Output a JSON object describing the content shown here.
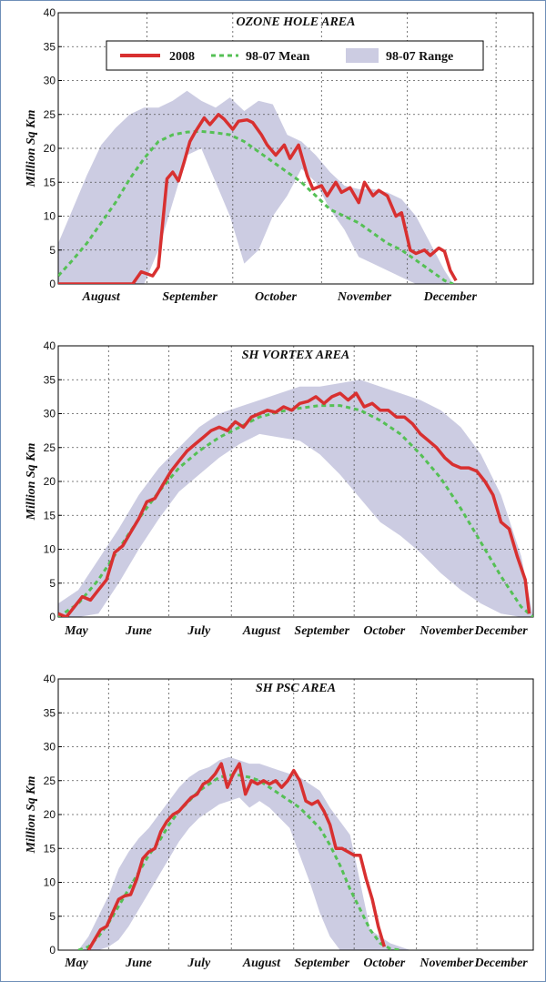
{
  "colors": {
    "series2008": "#d83030",
    "mean": "#55c055",
    "range": "#cccce2",
    "grid": "#555555"
  },
  "legend": {
    "items": [
      {
        "label": "2008",
        "style": "solid"
      },
      {
        "label": "98-07 Mean",
        "style": "dashed"
      },
      {
        "label": "98-07 Range",
        "style": "band"
      }
    ]
  },
  "chart_data": [
    {
      "type": "line",
      "title": "OZONE HOLE AREA",
      "xlabel": "",
      "ylabel": "Million Sq Km",
      "ylim": [
        0,
        40
      ],
      "yticks": [
        0,
        5,
        10,
        15,
        20,
        25,
        30,
        35,
        40
      ],
      "xlim": [
        0,
        166
      ],
      "months": [
        {
          "label": "August",
          "pos": 15
        },
        {
          "label": "September",
          "pos": 46
        },
        {
          "label": "October",
          "pos": 76
        },
        {
          "label": "November",
          "pos": 107
        },
        {
          "label": "December",
          "pos": 137
        }
      ],
      "grid_x": [
        31,
        61,
        92,
        122,
        153
      ],
      "legend": true,
      "series": [
        {
          "name": "2008",
          "x": [
            0,
            10,
            20,
            26,
            29,
            33,
            35,
            38,
            40,
            42,
            44,
            46,
            48,
            51,
            53,
            56,
            58,
            61,
            63,
            66,
            68,
            71,
            73,
            76,
            79,
            81,
            84,
            87,
            89,
            92,
            94,
            97,
            99,
            102,
            105,
            107,
            110,
            112,
            115,
            118,
            120,
            123,
            125,
            128,
            130,
            133,
            135,
            137,
            139
          ],
          "y": [
            0,
            0,
            0,
            0,
            1.8,
            1.2,
            2.5,
            15.5,
            16.5,
            15.2,
            18,
            21,
            22.5,
            24.5,
            23.5,
            25,
            24.3,
            22.8,
            24,
            24.2,
            23.8,
            22,
            20.5,
            19,
            20.5,
            18.5,
            20.5,
            16,
            14,
            14.5,
            13,
            15,
            13.5,
            14.2,
            12,
            15,
            13,
            13.8,
            13,
            10,
            10.5,
            5,
            4.5,
            5,
            4.2,
            5.3,
            4.8,
            2,
            0.5
          ]
        },
        {
          "name": "98-07 Mean",
          "x": [
            0,
            5,
            10,
            15,
            20,
            25,
            30,
            35,
            40,
            45,
            50,
            55,
            60,
            65,
            70,
            75,
            80,
            85,
            90,
            95,
            100,
            105,
            110,
            115,
            120,
            125,
            130,
            135,
            138
          ],
          "y": [
            1.2,
            3.5,
            6,
            9,
            12,
            15.5,
            18.5,
            21,
            22,
            22.4,
            22.5,
            22.3,
            22,
            21,
            19.5,
            18,
            16.5,
            15,
            13,
            11,
            10,
            9,
            7.5,
            6,
            5,
            3.5,
            2,
            0.5,
            0
          ]
        },
        {
          "name": "98-07 Range",
          "type": "area",
          "x": [
            0,
            5,
            10,
            15,
            20,
            25,
            30,
            35,
            40,
            45,
            50,
            55,
            60,
            65,
            70,
            75,
            80,
            85,
            90,
            95,
            100,
            105,
            110,
            115,
            120,
            125,
            130,
            135,
            138
          ],
          "upper": [
            6,
            11,
            16,
            20.5,
            23,
            25,
            26,
            26,
            27,
            28.5,
            27,
            26,
            27.5,
            25.5,
            27,
            26.5,
            22,
            21,
            19,
            16.5,
            14.5,
            14,
            14,
            13.5,
            12.5,
            10,
            6,
            2,
            0
          ],
          "lower": [
            0,
            0,
            0,
            0,
            0,
            0,
            0,
            5,
            12,
            19,
            20,
            15,
            10,
            3,
            5,
            10,
            13,
            17,
            15,
            11,
            8,
            4,
            3,
            2,
            1,
            0,
            0,
            0,
            0
          ]
        }
      ]
    },
    {
      "type": "line",
      "title": "SH VORTEX AREA",
      "xlabel": "",
      "ylabel": "Million Sq Km",
      "ylim": [
        0,
        40
      ],
      "yticks": [
        0,
        5,
        10,
        15,
        20,
        25,
        30,
        35,
        40
      ],
      "xlim": [
        0,
        236
      ],
      "months": [
        {
          "label": "May",
          "pos": 9
        },
        {
          "label": "June",
          "pos": 40
        },
        {
          "label": "July",
          "pos": 70
        },
        {
          "label": "August",
          "pos": 101
        },
        {
          "label": "September",
          "pos": 131
        },
        {
          "label": "October",
          "pos": 162
        },
        {
          "label": "November",
          "pos": 193
        },
        {
          "label": "December",
          "pos": 220
        }
      ],
      "grid_x": [
        25,
        55,
        86,
        117,
        147,
        178,
        208
      ],
      "legend": false,
      "series": [
        {
          "name": "2008",
          "x": [
            0,
            4,
            8,
            12,
            16,
            20,
            24,
            28,
            32,
            36,
            40,
            44,
            48,
            52,
            56,
            60,
            64,
            68,
            72,
            76,
            80,
            84,
            88,
            92,
            96,
            100,
            104,
            108,
            112,
            116,
            120,
            124,
            128,
            132,
            136,
            140,
            144,
            148,
            152,
            156,
            160,
            164,
            168,
            172,
            176,
            180,
            184,
            188,
            192,
            196,
            200,
            204,
            208,
            212,
            216,
            220,
            224,
            228,
            232,
            234
          ],
          "y": [
            0.5,
            0,
            1.5,
            3,
            2.5,
            4,
            5.5,
            9.5,
            10.5,
            12.5,
            14.5,
            17,
            17.5,
            19.5,
            21.5,
            23,
            24.5,
            25.5,
            26.5,
            27.5,
            28,
            27.5,
            28.8,
            28,
            29.5,
            30,
            30.5,
            30.2,
            31,
            30.5,
            31.5,
            31.8,
            32.5,
            31.5,
            32.5,
            33,
            32,
            33,
            31,
            31.5,
            30.5,
            30.5,
            29.5,
            29.5,
            28.5,
            27,
            26,
            25,
            23.5,
            22.5,
            22,
            22,
            21.5,
            20,
            18,
            14,
            13,
            9,
            5.5,
            0.5
          ]
        },
        {
          "name": "98-07 Mean",
          "x": [
            0,
            10,
            20,
            30,
            40,
            50,
            60,
            70,
            80,
            90,
            100,
            110,
            120,
            130,
            140,
            150,
            160,
            170,
            180,
            190,
            200,
            210,
            220,
            230,
            236
          ],
          "y": [
            0,
            2,
            5.5,
            10,
            14.5,
            18.5,
            22,
            24.5,
            26.5,
            28,
            29.5,
            30.3,
            30.8,
            31.2,
            31.2,
            30.5,
            29,
            27,
            24,
            20.5,
            16,
            11,
            6,
            1.5,
            0
          ]
        },
        {
          "name": "98-07 Range",
          "type": "area",
          "x": [
            0,
            10,
            20,
            30,
            40,
            50,
            60,
            70,
            80,
            90,
            100,
            110,
            120,
            130,
            140,
            150,
            160,
            170,
            180,
            190,
            200,
            210,
            220,
            230,
            236
          ],
          "upper": [
            2,
            4,
            8.5,
            13,
            18,
            22,
            25,
            28,
            30,
            31,
            32,
            33,
            34,
            34,
            34.5,
            35,
            34,
            33,
            32,
            30.5,
            28,
            24,
            18,
            9,
            0
          ],
          "lower": [
            0,
            0,
            0.5,
            5,
            10,
            14.5,
            18.5,
            21,
            23.5,
            25.5,
            27,
            26.5,
            26,
            24,
            21,
            17.5,
            14,
            12,
            9.5,
            6.5,
            4,
            2,
            0.5,
            0,
            0
          ]
        }
      ]
    },
    {
      "type": "line",
      "title": "SH PSC AREA",
      "xlabel": "",
      "ylabel": "Million Sq Km",
      "ylim": [
        0,
        40
      ],
      "yticks": [
        0,
        5,
        10,
        15,
        20,
        25,
        30,
        35,
        40
      ],
      "xlim": [
        0,
        236
      ],
      "months": [
        {
          "label": "May",
          "pos": 9
        },
        {
          "label": "June",
          "pos": 40
        },
        {
          "label": "July",
          "pos": 70
        },
        {
          "label": "August",
          "pos": 101
        },
        {
          "label": "September",
          "pos": 131
        },
        {
          "label": "October",
          "pos": 162
        },
        {
          "label": "November",
          "pos": 193
        },
        {
          "label": "December",
          "pos": 220
        }
      ],
      "grid_x": [
        25,
        55,
        86,
        117,
        147,
        178,
        208
      ],
      "legend": false,
      "series": [
        {
          "name": "2008",
          "x": [
            15,
            18,
            21,
            24,
            27,
            30,
            33,
            36,
            39,
            42,
            45,
            48,
            51,
            54,
            57,
            60,
            63,
            66,
            69,
            72,
            75,
            78,
            81,
            84,
            87,
            90,
            93,
            96,
            99,
            102,
            105,
            108,
            111,
            114,
            117,
            120,
            123,
            126,
            129,
            132,
            135,
            138,
            141,
            144,
            147,
            150,
            153,
            156,
            159,
            162
          ],
          "y": [
            0,
            1.5,
            3,
            3.5,
            5.5,
            7.5,
            8,
            8.2,
            10.5,
            13.5,
            14.5,
            15,
            17.5,
            19,
            20,
            20.5,
            21.5,
            22.5,
            23,
            24.5,
            25,
            26,
            27.5,
            24,
            26,
            27.5,
            23,
            25,
            24.5,
            25,
            24.5,
            25,
            24,
            25,
            26.5,
            25,
            22,
            21.5,
            22,
            20.5,
            18.5,
            15,
            15,
            14.5,
            14,
            14,
            10.5,
            7.5,
            3.5,
            0.5
          ]
        },
        {
          "name": "98-07 Mean",
          "x": [
            10,
            15,
            20,
            25,
            30,
            35,
            40,
            45,
            50,
            55,
            60,
            65,
            70,
            75,
            80,
            85,
            90,
            95,
            100,
            105,
            110,
            115,
            120,
            125,
            130,
            135,
            140,
            145,
            150,
            155,
            160,
            165,
            170
          ],
          "y": [
            0,
            0.5,
            2,
            4,
            6.5,
            9,
            11.5,
            14,
            16,
            18.5,
            20.5,
            22,
            23.5,
            24.5,
            25.5,
            25.8,
            25.8,
            25.5,
            25,
            24,
            23,
            22,
            21,
            19.5,
            18,
            15.5,
            12.5,
            9,
            6,
            3,
            1,
            0.2,
            0
          ]
        },
        {
          "name": "98-07 Range",
          "type": "area",
          "x": [
            10,
            15,
            20,
            25,
            30,
            35,
            40,
            45,
            50,
            55,
            60,
            65,
            70,
            75,
            80,
            85,
            90,
            95,
            100,
            105,
            110,
            115,
            120,
            125,
            130,
            135,
            140,
            145,
            150,
            155,
            160,
            165,
            170,
            175
          ],
          "upper": [
            0,
            2,
            5,
            8,
            12,
            14.5,
            16.5,
            18,
            20,
            22,
            24,
            25.5,
            26.5,
            27,
            28,
            28.5,
            28,
            27.5,
            27.5,
            27,
            26.5,
            26,
            25.5,
            24.5,
            23.5,
            21,
            19,
            17,
            10,
            3,
            2,
            1,
            0.5,
            0
          ],
          "lower": [
            0,
            0,
            0,
            0.5,
            1.5,
            3.5,
            6,
            8.5,
            11,
            13.5,
            16,
            18,
            19.5,
            20.5,
            21.5,
            22,
            22.5,
            21,
            22,
            21,
            19.5,
            18,
            14,
            10,
            5.5,
            2,
            0,
            0,
            0,
            0,
            0,
            0,
            0,
            0
          ]
        }
      ]
    }
  ]
}
